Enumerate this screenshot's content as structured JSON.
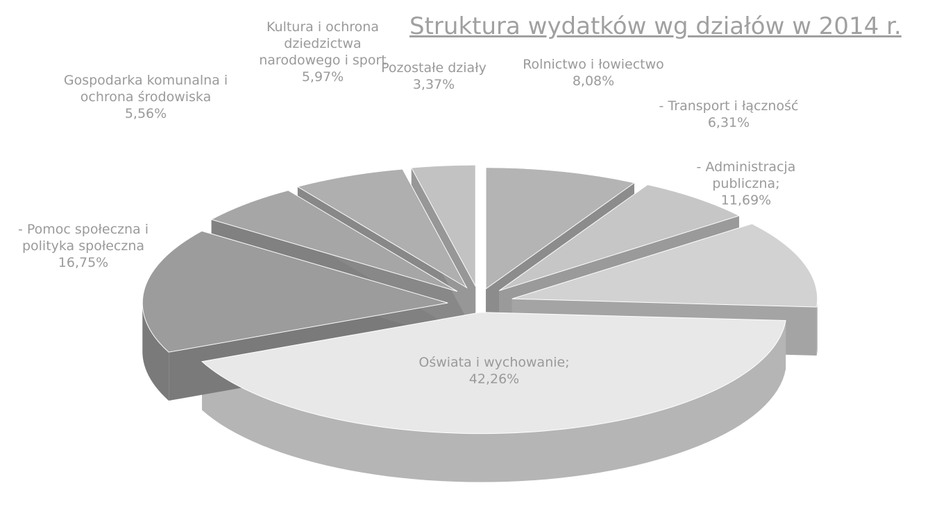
{
  "chart_data": {
    "type": "pie3d",
    "title": "Struktura wydatków wg działów w 2014 r.",
    "categories": [
      "Rolnictwo i łowiectwo",
      "- Transport i łączność",
      "-  Administracja publiczna;",
      "Oświata i wychowanie;",
      "- Pomoc społeczna i polityka społeczna",
      "Gospodarka komunalna i ochrona środowiska",
      "Kultura i ochrona dziedzictwa narodowego i sport",
      "Pozostałe działy"
    ],
    "values": [
      8.08,
      6.31,
      11.69,
      42.26,
      16.75,
      5.56,
      5.97,
      3.37
    ],
    "value_labels": [
      "8,08%",
      "6,31%",
      "11,69%",
      "42,26%",
      "16,75%",
      "5,56%",
      "5,97%",
      "3,37%"
    ],
    "colors": [
      "#b4b4b4",
      "#c6c6c6",
      "#d2d2d2",
      "#e8e8e8",
      "#9c9c9c",
      "#a6a6a6",
      "#afafaf",
      "#c2c2c2"
    ]
  }
}
